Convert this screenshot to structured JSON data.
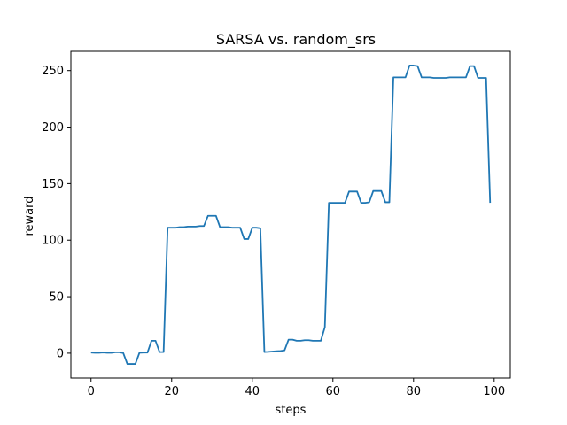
{
  "chart_data": {
    "type": "line",
    "title": "SARSA vs. random_srs",
    "xlabel": "steps",
    "ylabel": "reward",
    "xlim": [
      -5,
      104
    ],
    "ylim": [
      -22,
      267
    ],
    "xticks": [
      0,
      20,
      40,
      60,
      80,
      100
    ],
    "yticks": [
      0,
      50,
      100,
      150,
      200,
      250
    ],
    "grid": false,
    "line_color": "#1f77b4",
    "series": [
      {
        "x": [
          0,
          1,
          2,
          3,
          4,
          5,
          6,
          7,
          8,
          9,
          10,
          11,
          12,
          13,
          14,
          15,
          16,
          17,
          18,
          19,
          20,
          21,
          22,
          23,
          24,
          25,
          26,
          27,
          28,
          29,
          30,
          31,
          32,
          33,
          34,
          35,
          36,
          37,
          38,
          39,
          40,
          41,
          42,
          43,
          44,
          45,
          46,
          47,
          48,
          49,
          50,
          51,
          52,
          53,
          54,
          55,
          56,
          57,
          58,
          59,
          60,
          61,
          62,
          63,
          64,
          65,
          66,
          67,
          68,
          69,
          70,
          71,
          72,
          73,
          74,
          75,
          76,
          77,
          78,
          79,
          80,
          81,
          82,
          83,
          84,
          85,
          86,
          87,
          88,
          89,
          90,
          91,
          92,
          93,
          94,
          95,
          96,
          97,
          98,
          99
        ],
        "values": [
          0.5,
          0.3,
          0.3,
          0.6,
          0.3,
          0.3,
          0.8,
          0.8,
          0.1,
          -9.5,
          -9.5,
          -9.5,
          0.3,
          0.5,
          0.5,
          11,
          11,
          1,
          1,
          111,
          111,
          111,
          111.5,
          111.5,
          112,
          112,
          112,
          112.5,
          112.5,
          121.5,
          121.5,
          121.5,
          111.5,
          111.5,
          111.5,
          111,
          111,
          111,
          101,
          101,
          111,
          111,
          110.5,
          1,
          1.2,
          1.5,
          1.8,
          2,
          2.5,
          12,
          12,
          11,
          11,
          11.5,
          11.5,
          11,
          11,
          11,
          23,
          133,
          133,
          133,
          133,
          133,
          143,
          143,
          143,
          133,
          133,
          133.5,
          143.5,
          143.5,
          143.5,
          133.5,
          133.5,
          244,
          244,
          244,
          244,
          254.5,
          254.5,
          254,
          244,
          244,
          244,
          243.5,
          243.5,
          243.5,
          243.5,
          244,
          244,
          244,
          244,
          244,
          254,
          254,
          243.5,
          243.5,
          243.5,
          133
        ]
      }
    ]
  }
}
